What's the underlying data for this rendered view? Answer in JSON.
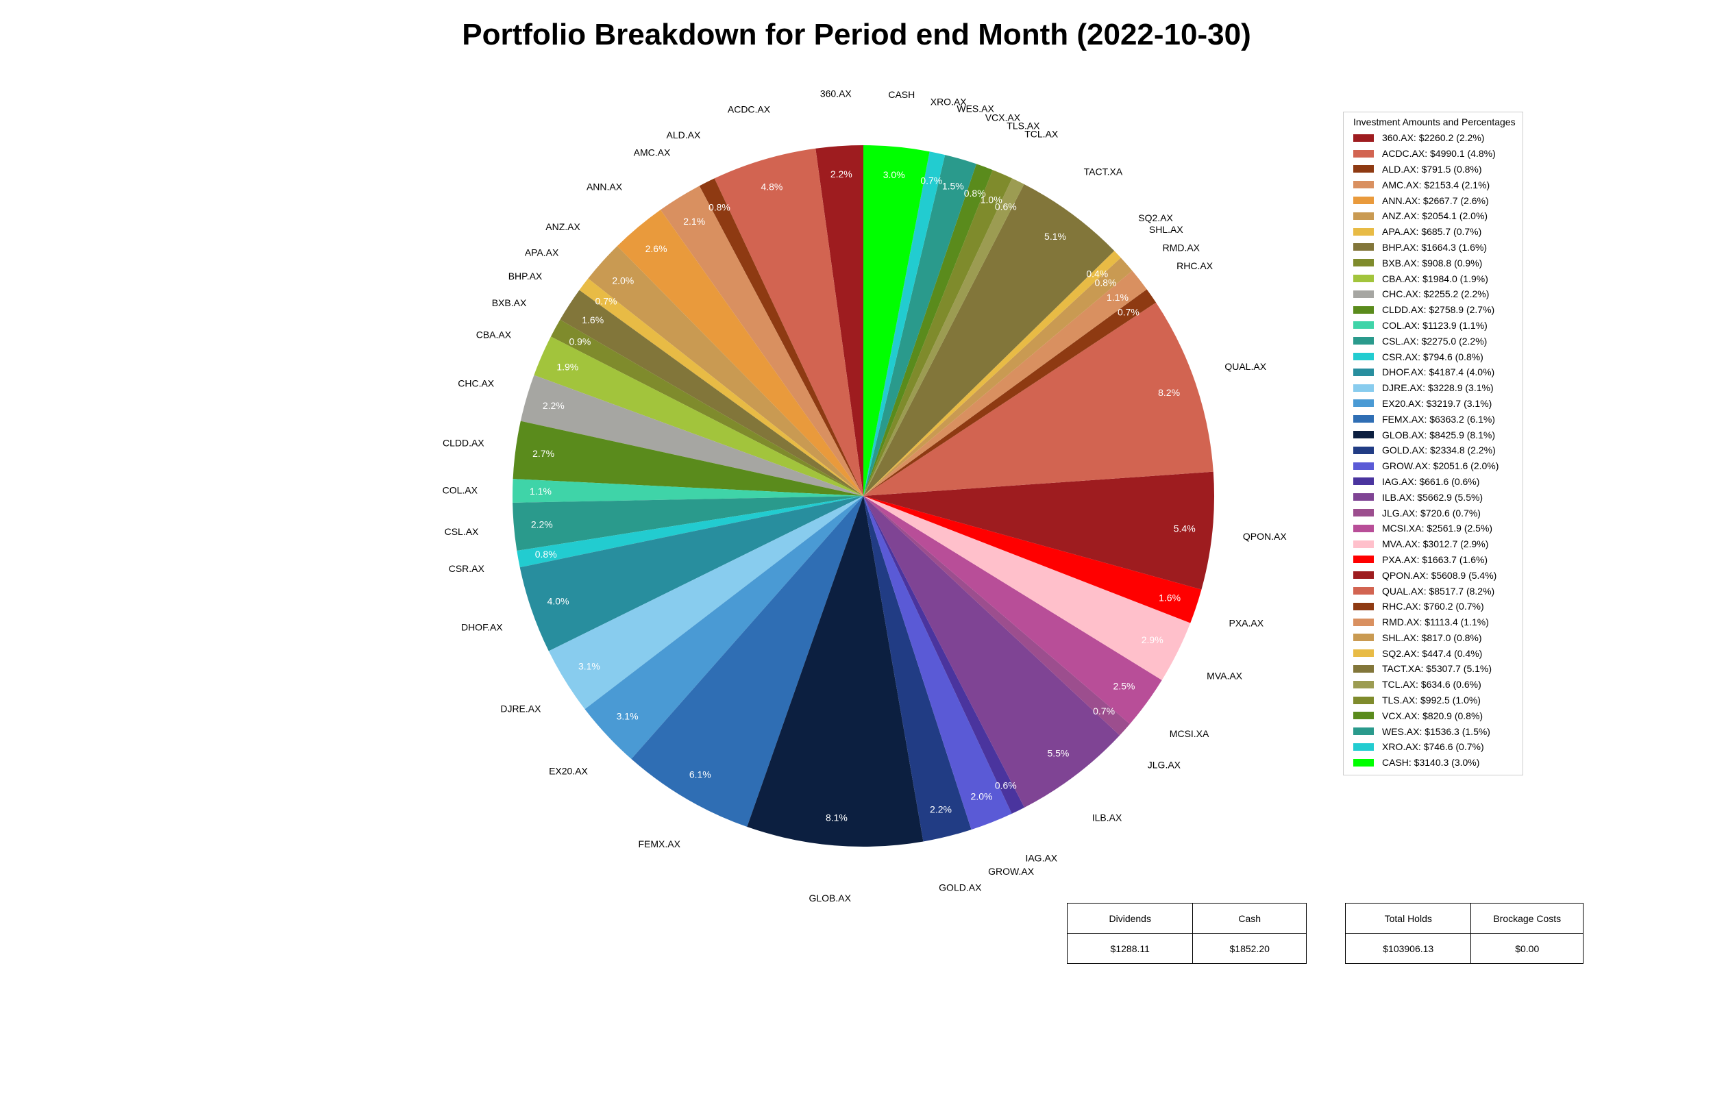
{
  "chart_data": {
    "type": "pie",
    "title": "Portfolio Breakdown for Period end Month (2022-10-30)",
    "legend_title": "Investment Amounts and Percentages",
    "legend_placement": "right",
    "start_angle_deg": 90,
    "direction": "counterclockwise",
    "slices": [
      {
        "label": "360.AX",
        "value": 2260.2,
        "pct": "2.2%",
        "legend": "360.AX: $2260.2 (2.2%)",
        "color": "#9e1c1f"
      },
      {
        "label": "ACDC.AX",
        "value": 4990.1,
        "pct": "4.8%",
        "legend": "ACDC.AX: $4990.1 (4.8%)",
        "color": "#d26451"
      },
      {
        "label": "ALD.AX",
        "value": 791.5,
        "pct": "0.8%",
        "legend": "ALD.AX: $791.5 (0.8%)",
        "color": "#8e3a12"
      },
      {
        "label": "AMC.AX",
        "value": 2153.4,
        "pct": "2.1%",
        "legend": "AMC.AX: $2153.4 (2.1%)",
        "color": "#d99060"
      },
      {
        "label": "ANN.AX",
        "value": 2667.7,
        "pct": "2.6%",
        "legend": "ANN.AX: $2667.7 (2.6%)",
        "color": "#e99a3c"
      },
      {
        "label": "ANZ.AX",
        "value": 2054.1,
        "pct": "2.0%",
        "legend": "ANZ.AX: $2054.1 (2.0%)",
        "color": "#c99a52"
      },
      {
        "label": "APA.AX",
        "value": 685.7,
        "pct": "0.7%",
        "legend": "APA.AX: $685.7 (0.7%)",
        "color": "#e8bb45"
      },
      {
        "label": "BHP.AX",
        "value": 1664.3,
        "pct": "1.6%",
        "legend": "BHP.AX: $1664.3 (1.6%)",
        "color": "#82763a"
      },
      {
        "label": "BXB.AX",
        "value": 908.8,
        "pct": "0.9%",
        "legend": "BXB.AX: $908.8 (0.9%)",
        "color": "#7f8b2c"
      },
      {
        "label": "CBA.AX",
        "value": 1984.0,
        "pct": "1.9%",
        "legend": "CBA.AX: $1984.0 (1.9%)",
        "color": "#a2c43c"
      },
      {
        "label": "CHC.AX",
        "value": 2255.2,
        "pct": "2.2%",
        "legend": "CHC.AX: $2255.2 (2.2%)",
        "color": "#a6a6a2"
      },
      {
        "label": "CLDD.AX",
        "value": 2758.9,
        "pct": "2.7%",
        "legend": "CLDD.AX: $2758.9 (2.7%)",
        "color": "#5a8b1c"
      },
      {
        "label": "COL.AX",
        "value": 1123.9,
        "pct": "1.1%",
        "legend": "COL.AX: $1123.9 (1.1%)",
        "color": "#3fd4a8"
      },
      {
        "label": "CSL.AX",
        "value": 2275.0,
        "pct": "2.2%",
        "legend": "CSL.AX: $2275.0 (2.2%)",
        "color": "#2a9a8c"
      },
      {
        "label": "CSR.AX",
        "value": 794.6,
        "pct": "0.8%",
        "legend": "CSR.AX: $794.6 (0.8%)",
        "color": "#22ccd0"
      },
      {
        "label": "DHOF.AX",
        "value": 4187.4,
        "pct": "4.0%",
        "legend": "DHOF.AX: $4187.4 (4.0%)",
        "color": "#288e9e"
      },
      {
        "label": "DJRE.AX",
        "value": 3228.9,
        "pct": "3.1%",
        "legend": "DJRE.AX: $3228.9 (3.1%)",
        "color": "#88ccee"
      },
      {
        "label": "EX20.AX",
        "value": 3219.7,
        "pct": "3.1%",
        "legend": "EX20.AX: $3219.7 (3.1%)",
        "color": "#4a9ad4"
      },
      {
        "label": "FEMX.AX",
        "value": 6363.2,
        "pct": "6.1%",
        "legend": "FEMX.AX: $6363.2 (6.1%)",
        "color": "#2f6eb4"
      },
      {
        "label": "GLOB.AX",
        "value": 8425.9,
        "pct": "8.1%",
        "legend": "GLOB.AX: $8425.9 (8.1%)",
        "color": "#0c1f40"
      },
      {
        "label": "GOLD.AX",
        "value": 2334.8,
        "pct": "2.2%",
        "legend": "GOLD.AX: $2334.8 (2.2%)",
        "color": "#213c84"
      },
      {
        "label": "GROW.AX",
        "value": 2051.6,
        "pct": "2.0%",
        "legend": "GROW.AX: $2051.6 (2.0%)",
        "color": "#5a5ad6"
      },
      {
        "label": "IAG.AX",
        "value": 661.6,
        "pct": "0.6%",
        "legend": "IAG.AX: $661.6 (0.6%)",
        "color": "#4a349e"
      },
      {
        "label": "ILB.AX",
        "value": 5662.9,
        "pct": "5.5%",
        "legend": "ILB.AX: $5662.9 (5.5%)",
        "color": "#7f4494"
      },
      {
        "label": "JLG.AX",
        "value": 720.6,
        "pct": "0.7%",
        "legend": "JLG.AX: $720.6 (0.7%)",
        "color": "#9c4e8e"
      },
      {
        "label": "MCSI.XA",
        "value": 2561.9,
        "pct": "2.5%",
        "legend": "MCSI.XA: $2561.9 (2.5%)",
        "color": "#b84e98"
      },
      {
        "label": "MVA.AX",
        "value": 3012.7,
        "pct": "2.9%",
        "legend": "MVA.AX: $3012.7 (2.9%)",
        "color": "#ffc0cb"
      },
      {
        "label": "PXA.AX",
        "value": 1663.7,
        "pct": "1.6%",
        "legend": "PXA.AX: $1663.7 (1.6%)",
        "color": "#ff0000"
      },
      {
        "label": "QPON.AX",
        "value": 5608.9,
        "pct": "5.4%",
        "legend": "QPON.AX: $5608.9 (5.4%)",
        "color": "#9e1c1f"
      },
      {
        "label": "QUAL.AX",
        "value": 8517.7,
        "pct": "8.2%",
        "legend": "QUAL.AX: $8517.7 (8.2%)",
        "color": "#d26451"
      },
      {
        "label": "RHC.AX",
        "value": 760.2,
        "pct": "0.7%",
        "legend": "RHC.AX: $760.2 (0.7%)",
        "color": "#8e3a12"
      },
      {
        "label": "RMD.AX",
        "value": 1113.4,
        "pct": "1.1%",
        "legend": "RMD.AX: $1113.4 (1.1%)",
        "color": "#d99060"
      },
      {
        "label": "SHL.AX",
        "value": 817.0,
        "pct": "0.8%",
        "legend": "SHL.AX: $817.0 (0.8%)",
        "color": "#c99a52"
      },
      {
        "label": "SQ2.AX",
        "value": 447.4,
        "pct": "0.4%",
        "legend": "SQ2.AX: $447.4 (0.4%)",
        "color": "#e8bb45"
      },
      {
        "label": "TACT.XA",
        "value": 5307.7,
        "pct": "5.1%",
        "legend": "TACT.XA: $5307.7 (5.1%)",
        "color": "#82763a"
      },
      {
        "label": "TCL.AX",
        "value": 634.6,
        "pct": "0.6%",
        "legend": "TCL.AX: $634.6 (0.6%)",
        "color": "#9c9c52"
      },
      {
        "label": "TLS.AX",
        "value": 992.5,
        "pct": "1.0%",
        "legend": "TLS.AX: $992.5 (1.0%)",
        "color": "#7f8b2c"
      },
      {
        "label": "VCX.AX",
        "value": 820.9,
        "pct": "0.8%",
        "legend": "VCX.AX: $820.9 (0.8%)",
        "color": "#5a8b1c"
      },
      {
        "label": "WES.AX",
        "value": 1536.3,
        "pct": "1.5%",
        "legend": "WES.AX: $1536.3 (1.5%)",
        "color": "#2a9a8c"
      },
      {
        "label": "XRO.AX",
        "value": 746.6,
        "pct": "0.7%",
        "legend": "XRO.AX: $746.6 (0.7%)",
        "color": "#22ccd0"
      },
      {
        "label": "CASH",
        "value": 3140.3,
        "pct": "3.0%",
        "legend": "CASH: $3140.3 (3.0%)",
        "color": "#00ff00"
      }
    ]
  },
  "summary_left": {
    "headers": [
      "Dividends",
      "Cash"
    ],
    "values": [
      "$1288.11",
      "$1852.20"
    ]
  },
  "summary_right": {
    "headers": [
      "Total Holds",
      "Brockage Costs"
    ],
    "values": [
      "$103906.13",
      "$0.00"
    ]
  }
}
